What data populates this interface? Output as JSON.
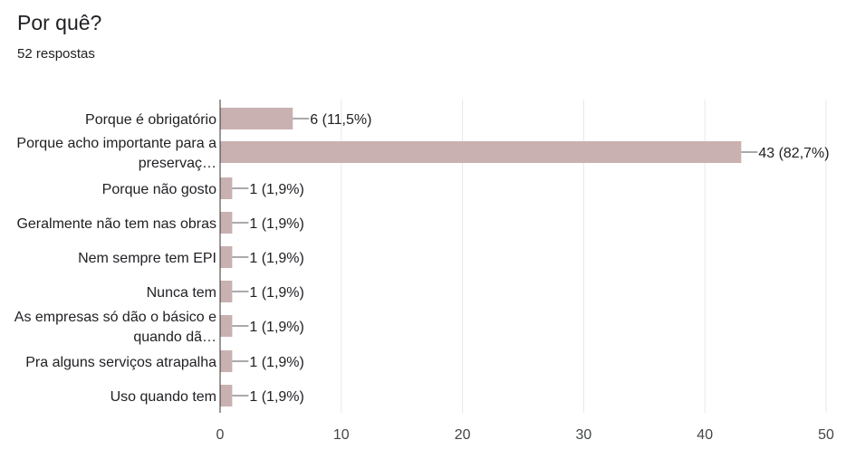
{
  "question": {
    "title": "Por quê?",
    "responses": "52 respostas"
  },
  "chart_data": {
    "type": "bar",
    "orientation": "horizontal",
    "categories": [
      [
        "Porque é obrigatório"
      ],
      [
        "Porque acho importante para a",
        "preservaç…"
      ],
      [
        "Porque não gosto"
      ],
      [
        "Geralmente não tem nas obras"
      ],
      [
        "Nem sempre tem EPI"
      ],
      [
        "Nunca tem"
      ],
      [
        "As empresas só dão o básico e",
        "quando dã…"
      ],
      [
        "Pra alguns serviços atrapalha"
      ],
      [
        "Uso quando tem"
      ]
    ],
    "values": [
      6,
      43,
      1,
      1,
      1,
      1,
      1,
      1,
      1
    ],
    "value_labels": [
      "6 (11,5%)",
      "43 (82,7%)",
      "1 (1,9%)",
      "1 (1,9%)",
      "1 (1,9%)",
      "1 (1,9%)",
      "1 (1,9%)",
      "1 (1,9%)",
      "1 (1,9%)"
    ],
    "xlim": [
      0,
      50
    ],
    "xticks": [
      "0",
      "10",
      "20",
      "30",
      "40",
      "50"
    ],
    "grid": true,
    "bar_color": "#c9b1b1",
    "title": "",
    "xlabel": "",
    "ylabel": ""
  }
}
